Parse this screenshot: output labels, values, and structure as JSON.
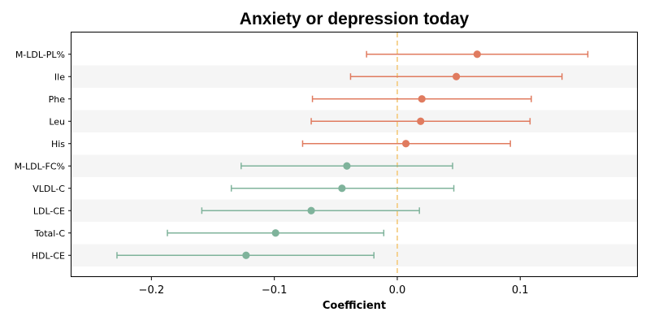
{
  "chart_data": {
    "type": "forest",
    "title": "Anxiety or depression today",
    "xlabel": "Coefficient",
    "ylabel": "",
    "xlim": [
      -0.265,
      0.195
    ],
    "xticks": [
      -0.2,
      -0.1,
      0.0,
      0.1
    ],
    "xtick_labels": [
      "−0.2",
      "−0.1",
      "0.0",
      "0.1"
    ],
    "reference_line": 0,
    "grid": false,
    "alternating_row_shading": true,
    "colors": {
      "positive": "#e07b5f",
      "negative": "#7fb39b",
      "reference": "#f3c97a",
      "row_shade": "#f5f5f5"
    },
    "points": [
      {
        "label": "M-LDL-PL%",
        "estimate": 0.065,
        "lower": -0.025,
        "upper": 0.155
      },
      {
        "label": "Ile",
        "estimate": 0.048,
        "lower": -0.038,
        "upper": 0.134
      },
      {
        "label": "Phe",
        "estimate": 0.02,
        "lower": -0.069,
        "upper": 0.109
      },
      {
        "label": "Leu",
        "estimate": 0.019,
        "lower": -0.07,
        "upper": 0.108
      },
      {
        "label": "His",
        "estimate": 0.007,
        "lower": -0.077,
        "upper": 0.092
      },
      {
        "label": "M-LDL-FC%",
        "estimate": -0.041,
        "lower": -0.127,
        "upper": 0.045
      },
      {
        "label": "VLDL-C",
        "estimate": -0.045,
        "lower": -0.135,
        "upper": 0.046
      },
      {
        "label": "LDL-CE",
        "estimate": -0.07,
        "lower": -0.159,
        "upper": 0.018
      },
      {
        "label": "Total-C",
        "estimate": -0.099,
        "lower": -0.187,
        "upper": -0.011
      },
      {
        "label": "HDL-CE",
        "estimate": -0.123,
        "lower": -0.228,
        "upper": -0.019
      }
    ]
  }
}
